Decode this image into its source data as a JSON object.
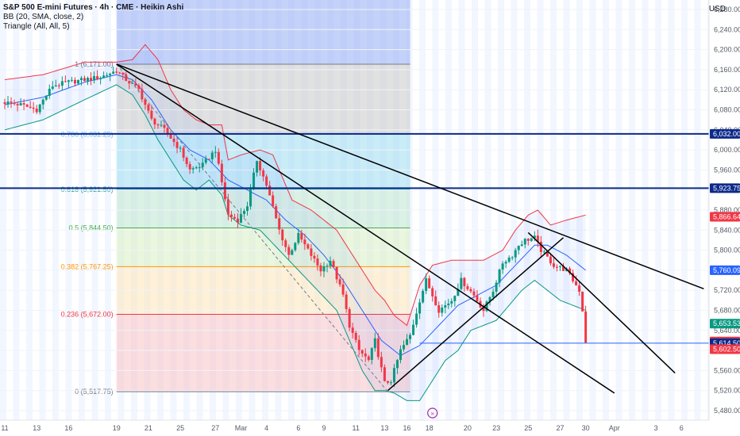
{
  "header": {
    "title": "S&P 500 E-mini Futures · 4h · CME · Heikin Ashi",
    "indicator_bb": "BB (20, SMA, close, 2)",
    "indicator_triangle": "Triangle (All, All, 5)",
    "currency": "USD"
  },
  "colors": {
    "up": "#089981",
    "down": "#f23645",
    "bb_upper": "#f23645",
    "bb_lower": "#089981",
    "bb_basis": "#2962ff",
    "hline": "#0d2a8a",
    "trend": "#000000"
  },
  "chart_data": {
    "type": "candlestick",
    "title": "S&P 500 E-mini Futures · 4h · CME · Heikin Ashi",
    "ylim": [
      5480,
      6280
    ],
    "y_ticks": [
      {
        "value": 6280,
        "label": "6,280.00"
      },
      {
        "value": 6240,
        "label": "6,240.00"
      },
      {
        "value": 6200,
        "label": "6,200.00"
      },
      {
        "value": 6160,
        "label": "6,160.00"
      },
      {
        "value": 6120,
        "label": "6,120.00"
      },
      {
        "value": 6080,
        "label": "6,080.00"
      },
      {
        "value": 6040,
        "label": "6,040.00"
      },
      {
        "value": 6000,
        "label": "6,000.00"
      },
      {
        "value": 5960,
        "label": "5,960.00"
      },
      {
        "value": 5920,
        "label": "5,920.00"
      },
      {
        "value": 5880,
        "label": "5,880.00"
      },
      {
        "value": 5840,
        "label": "5,840.00"
      },
      {
        "value": 5800,
        "label": "5,800.00"
      },
      {
        "value": 5760,
        "label": "5,760.00"
      },
      {
        "value": 5720,
        "label": "5,720.00"
      },
      {
        "value": 5680,
        "label": "5,680.00"
      },
      {
        "value": 5640,
        "label": "5,640.00"
      },
      {
        "value": 5600,
        "label": "5,600.00"
      },
      {
        "value": 5560,
        "label": "5,560.00"
      },
      {
        "value": 5520,
        "label": "5,520.00"
      },
      {
        "value": 5480,
        "label": "5,480.00"
      }
    ],
    "x_ticks": [
      {
        "i": 0,
        "label": "11"
      },
      {
        "i": 10,
        "label": "13"
      },
      {
        "i": 20,
        "label": "16"
      },
      {
        "i": 35,
        "label": "19"
      },
      {
        "i": 45,
        "label": "21"
      },
      {
        "i": 55,
        "label": "25"
      },
      {
        "i": 66,
        "label": "27"
      },
      {
        "i": 74,
        "label": "Mar"
      },
      {
        "i": 82,
        "label": "4"
      },
      {
        "i": 92,
        "label": "6"
      },
      {
        "i": 100,
        "label": "9"
      },
      {
        "i": 110,
        "label": "11"
      },
      {
        "i": 119,
        "label": "13"
      },
      {
        "i": 126,
        "label": "16"
      },
      {
        "i": 133,
        "label": "18"
      },
      {
        "i": 145,
        "label": "20"
      },
      {
        "i": 154,
        "label": "23"
      },
      {
        "i": 164,
        "label": "25"
      },
      {
        "i": 174,
        "label": "27"
      },
      {
        "i": 182,
        "label": "30"
      },
      {
        "i": 191,
        "label": "Apr"
      },
      {
        "i": 204,
        "label": "3"
      },
      {
        "i": 212,
        "label": "6"
      }
    ],
    "fib_levels": [
      {
        "ratio": 1,
        "price": 6171.0,
        "label": "1 (6,171.00)",
        "color": "#787b86"
      },
      {
        "ratio": 0.786,
        "price": 6031.25,
        "label": "0.786 (6,031.25)",
        "color": "#64b5f6"
      },
      {
        "ratio": 0.618,
        "price": 5921.5,
        "label": "0.618 (5,921.50)",
        "color": "#26a69a"
      },
      {
        "ratio": 0.5,
        "price": 5844.5,
        "label": "0.5 (5,844.50)",
        "color": "#4caf50"
      },
      {
        "ratio": 0.382,
        "price": 5767.25,
        "label": "0.382 (5,767.25)",
        "color": "#ff9800"
      },
      {
        "ratio": 0.236,
        "price": 5672.0,
        "label": "0.236 (5,672.00)",
        "color": "#f23645"
      },
      {
        "ratio": 0,
        "price": 5517.75,
        "label": "0 (5,517.75)",
        "color": "#787b86"
      }
    ],
    "horizontal_lines": [
      {
        "price": 6032.0
      },
      {
        "price": 5923.75
      }
    ],
    "price_badges": [
      {
        "price": 6032.0,
        "label": "6,032.00",
        "color": "#0d2a8a"
      },
      {
        "price": 5923.75,
        "label": "5,923.75",
        "color": "#0d2a8a"
      },
      {
        "price": 5866.64,
        "label": "5,866.64",
        "color": "#f23645"
      },
      {
        "price": 5760.09,
        "label": "5,760.09",
        "color": "#2962ff"
      },
      {
        "price": 5653.53,
        "label": "5,653.53",
        "color": "#089981"
      },
      {
        "price": 5618.0,
        "label": "5,618.00",
        "color": "#f23645"
      },
      {
        "price": 5614.5,
        "label": "5,614.50",
        "color": "#0d2a8a"
      },
      {
        "price": 5602.5,
        "label": "5,602.50",
        "color": "#f23645"
      }
    ],
    "trend_lines": [
      {
        "x1": 35,
        "y1": 6171,
        "x2": 219,
        "y2": 5723
      },
      {
        "x1": 35,
        "y1": 6171,
        "x2": 191,
        "y2": 5515
      },
      {
        "x1": 120,
        "y1": 5520,
        "x2": 175,
        "y2": 5825
      },
      {
        "x1": 164,
        "y1": 5835,
        "x2": 210,
        "y2": 5555
      }
    ],
    "close_anchors": [
      [
        0,
        6095
      ],
      [
        5,
        6090
      ],
      [
        10,
        6080
      ],
      [
        15,
        6128
      ],
      [
        20,
        6135
      ],
      [
        25,
        6140
      ],
      [
        30,
        6145
      ],
      [
        35,
        6158
      ],
      [
        38,
        6140
      ],
      [
        42,
        6120
      ],
      [
        46,
        6060
      ],
      [
        50,
        6040
      ],
      [
        55,
        6000
      ],
      [
        58,
        5960
      ],
      [
        62,
        5970
      ],
      [
        66,
        6000
      ],
      [
        70,
        5870
      ],
      [
        73,
        5860
      ],
      [
        76,
        5890
      ],
      [
        79,
        5980
      ],
      [
        82,
        5930
      ],
      [
        86,
        5840
      ],
      [
        89,
        5790
      ],
      [
        92,
        5830
      ],
      [
        95,
        5800
      ],
      [
        99,
        5760
      ],
      [
        102,
        5780
      ],
      [
        106,
        5710
      ],
      [
        108,
        5650
      ],
      [
        111,
        5600
      ],
      [
        114,
        5580
      ],
      [
        116,
        5620
      ],
      [
        119,
        5535
      ],
      [
        121,
        5540
      ],
      [
        124,
        5600
      ],
      [
        127,
        5630
      ],
      [
        130,
        5700
      ],
      [
        132,
        5740
      ],
      [
        136,
        5680
      ],
      [
        140,
        5700
      ],
      [
        143,
        5740
      ],
      [
        147,
        5710
      ],
      [
        150,
        5680
      ],
      [
        153,
        5720
      ],
      [
        156,
        5775
      ],
      [
        159,
        5790
      ],
      [
        161,
        5810
      ],
      [
        163,
        5820
      ],
      [
        166,
        5825
      ],
      [
        168,
        5800
      ],
      [
        170,
        5785
      ],
      [
        172,
        5770
      ],
      [
        174,
        5765
      ],
      [
        176,
        5760
      ],
      [
        178,
        5740
      ],
      [
        180,
        5720
      ],
      [
        181,
        5680
      ],
      [
        182,
        5618
      ]
    ],
    "bb_upper": [
      [
        0,
        6140
      ],
      [
        12,
        6150
      ],
      [
        25,
        6175
      ],
      [
        35,
        6175
      ],
      [
        40,
        6180
      ],
      [
        44,
        6210
      ],
      [
        48,
        6180
      ],
      [
        52,
        6120
      ],
      [
        56,
        6080
      ],
      [
        60,
        6060
      ],
      [
        64,
        6050
      ],
      [
        68,
        6050
      ],
      [
        70,
        5980
      ],
      [
        74,
        5990
      ],
      [
        80,
        6000
      ],
      [
        84,
        5990
      ],
      [
        90,
        5900
      ],
      [
        96,
        5880
      ],
      [
        100,
        5860
      ],
      [
        104,
        5840
      ],
      [
        108,
        5800
      ],
      [
        112,
        5760
      ],
      [
        116,
        5720
      ],
      [
        119,
        5700
      ],
      [
        122,
        5670
      ],
      [
        126,
        5650
      ],
      [
        130,
        5730
      ],
      [
        134,
        5770
      ],
      [
        140,
        5780
      ],
      [
        146,
        5780
      ],
      [
        150,
        5780
      ],
      [
        156,
        5800
      ],
      [
        160,
        5840
      ],
      [
        164,
        5870
      ],
      [
        167,
        5880
      ],
      [
        171,
        5850
      ],
      [
        176,
        5860
      ],
      [
        182,
        5870
      ]
    ],
    "bb_lower": [
      [
        0,
        6040
      ],
      [
        12,
        6060
      ],
      [
        25,
        6100
      ],
      [
        35,
        6130
      ],
      [
        40,
        6110
      ],
      [
        44,
        6070
      ],
      [
        48,
        6020
      ],
      [
        52,
        5980
      ],
      [
        56,
        5940
      ],
      [
        60,
        5920
      ],
      [
        64,
        5940
      ],
      [
        68,
        5910
      ],
      [
        70,
        5870
      ],
      [
        74,
        5850
      ],
      [
        80,
        5840
      ],
      [
        86,
        5800
      ],
      [
        92,
        5760
      ],
      [
        98,
        5720
      ],
      [
        104,
        5680
      ],
      [
        108,
        5620
      ],
      [
        112,
        5560
      ],
      [
        116,
        5520
      ],
      [
        119,
        5520
      ],
      [
        122,
        5515
      ],
      [
        126,
        5500
      ],
      [
        130,
        5500
      ],
      [
        134,
        5540
      ],
      [
        138,
        5580
      ],
      [
        142,
        5600
      ],
      [
        146,
        5640
      ],
      [
        150,
        5650
      ],
      [
        154,
        5660
      ],
      [
        158,
        5690
      ],
      [
        162,
        5720
      ],
      [
        166,
        5740
      ],
      [
        170,
        5720
      ],
      [
        174,
        5700
      ],
      [
        178,
        5690
      ],
      [
        182,
        5680
      ]
    ],
    "bb_basis": [
      [
        0,
        6090
      ],
      [
        12,
        6105
      ],
      [
        25,
        6135
      ],
      [
        35,
        6150
      ],
      [
        40,
        6140
      ],
      [
        46,
        6100
      ],
      [
        52,
        6040
      ],
      [
        58,
        6000
      ],
      [
        64,
        5980
      ],
      [
        70,
        5940
      ],
      [
        76,
        5920
      ],
      [
        82,
        5900
      ],
      [
        88,
        5860
      ],
      [
        94,
        5830
      ],
      [
        100,
        5790
      ],
      [
        106,
        5740
      ],
      [
        112,
        5680
      ],
      [
        118,
        5620
      ],
      [
        124,
        5590
      ],
      [
        130,
        5610
      ],
      [
        136,
        5650
      ],
      [
        142,
        5690
      ],
      [
        148,
        5710
      ],
      [
        154,
        5730
      ],
      [
        160,
        5770
      ],
      [
        166,
        5810
      ],
      [
        170,
        5810
      ],
      [
        176,
        5790
      ],
      [
        182,
        5760
      ]
    ]
  }
}
